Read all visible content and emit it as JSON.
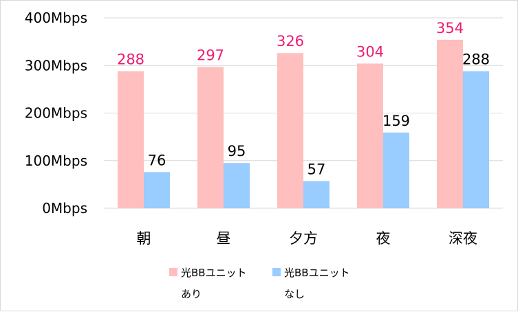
{
  "chart_data": {
    "type": "bar",
    "title": "",
    "xlabel": "",
    "ylabel": "",
    "categories": [
      "朝",
      "昼",
      "夕方",
      "夜",
      "深夜"
    ],
    "y_ticks": [
      "0Mbps",
      "100Mbps",
      "200Mbps",
      "300Mbps",
      "400Mbps"
    ],
    "ylim": [
      0,
      400
    ],
    "grid": true,
    "legend_position": "bottom",
    "series": [
      {
        "name_line1": "光BBユニット",
        "name_line2": "あり",
        "values": [
          288,
          297,
          326,
          304,
          354
        ],
        "color": "#ffbfbf",
        "label_color": "#ee1c6f"
      },
      {
        "name_line1": "光BBユニット",
        "name_line2": "なし",
        "values": [
          76,
          95,
          57,
          159,
          288
        ],
        "color": "#99ccff",
        "label_color": "#000000"
      }
    ]
  }
}
